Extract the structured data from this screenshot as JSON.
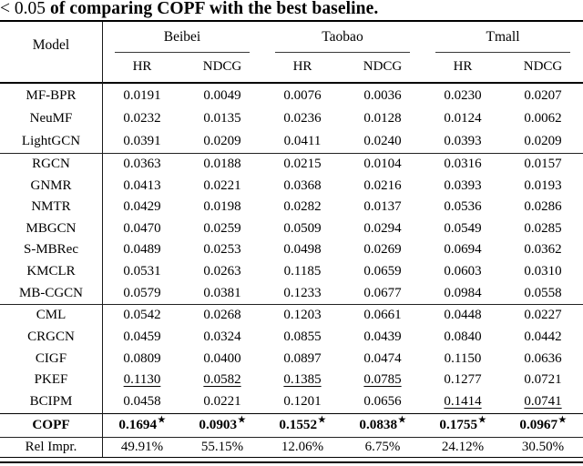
{
  "caption": {
    "math_part": "< 0.05",
    "bold_part": "of comparing COPF with the best baseline."
  },
  "colors": {
    "text": "#000000",
    "background": "#ffffff"
  },
  "header": {
    "model_label": "Model",
    "groups": [
      {
        "label": "Beibei",
        "metrics": [
          "HR",
          "NDCG"
        ]
      },
      {
        "label": "Taobao",
        "metrics": [
          "HR",
          "NDCG"
        ]
      },
      {
        "label": "Tmall",
        "metrics": [
          "HR",
          "NDCG"
        ]
      }
    ]
  },
  "body": {
    "groups": [
      {
        "rows": [
          {
            "model": "MF-BPR",
            "values": [
              "0.0191",
              "0.0049",
              "0.0076",
              "0.0036",
              "0.0230",
              "0.0207"
            ]
          },
          {
            "model": "NeuMF",
            "values": [
              "0.0232",
              "0.0135",
              "0.0236",
              "0.0128",
              "0.0124",
              "0.0062"
            ]
          },
          {
            "model": "LightGCN",
            "values": [
              "0.0391",
              "0.0209",
              "0.0411",
              "0.0240",
              "0.0393",
              "0.0209"
            ]
          }
        ]
      },
      {
        "rows": [
          {
            "model": "RGCN",
            "values": [
              "0.0363",
              "0.0188",
              "0.0215",
              "0.0104",
              "0.0316",
              "0.0157"
            ]
          },
          {
            "model": "GNMR",
            "values": [
              "0.0413",
              "0.0221",
              "0.0368",
              "0.0216",
              "0.0393",
              "0.0193"
            ]
          },
          {
            "model": "NMTR",
            "values": [
              "0.0429",
              "0.0198",
              "0.0282",
              "0.0137",
              "0.0536",
              "0.0286"
            ]
          },
          {
            "model": "MBGCN",
            "values": [
              "0.0470",
              "0.0259",
              "0.0509",
              "0.0294",
              "0.0549",
              "0.0285"
            ]
          },
          {
            "model": "S-MBRec",
            "values": [
              "0.0489",
              "0.0253",
              "0.0498",
              "0.0269",
              "0.0694",
              "0.0362"
            ]
          },
          {
            "model": "KMCLR",
            "values": [
              "0.0531",
              "0.0263",
              "0.1185",
              "0.0659",
              "0.0603",
              "0.0310"
            ]
          },
          {
            "model": "MB-CGCN",
            "values": [
              "0.0579",
              "0.0381",
              "0.1233",
              "0.0677",
              "0.0984",
              "0.0558"
            ]
          }
        ]
      },
      {
        "rows": [
          {
            "model": "CML",
            "values": [
              "0.0542",
              "0.0268",
              "0.1203",
              "0.0661",
              "0.0448",
              "0.0227"
            ]
          },
          {
            "model": "CRGCN",
            "values": [
              "0.0459",
              "0.0324",
              "0.0855",
              "0.0439",
              "0.0840",
              "0.0442"
            ]
          },
          {
            "model": "CIGF",
            "values": [
              "0.0809",
              "0.0400",
              "0.0897",
              "0.0474",
              "0.1150",
              "0.0636"
            ]
          },
          {
            "model": "PKEF",
            "values": [
              "0.1130",
              "0.0582",
              "0.1385",
              "0.0785",
              "0.1277",
              "0.0721"
            ],
            "underline": [
              0,
              1,
              2,
              3
            ]
          },
          {
            "model": "BCIPM",
            "values": [
              "0.0458",
              "0.0221",
              "0.1201",
              "0.0656",
              "0.1414",
              "0.0741"
            ],
            "underline": [
              4,
              5
            ]
          }
        ]
      }
    ],
    "copf": {
      "model": "COPF",
      "values": [
        "0.1694",
        "0.0903",
        "0.1552",
        "0.0838",
        "0.1755",
        "0.0967"
      ],
      "star": "★"
    },
    "rel_impr": {
      "model": "Rel Impr.",
      "values": [
        "49.91%",
        "55.15%",
        "12.06%",
        "6.75%",
        "24.12%",
        "30.50%"
      ]
    }
  }
}
